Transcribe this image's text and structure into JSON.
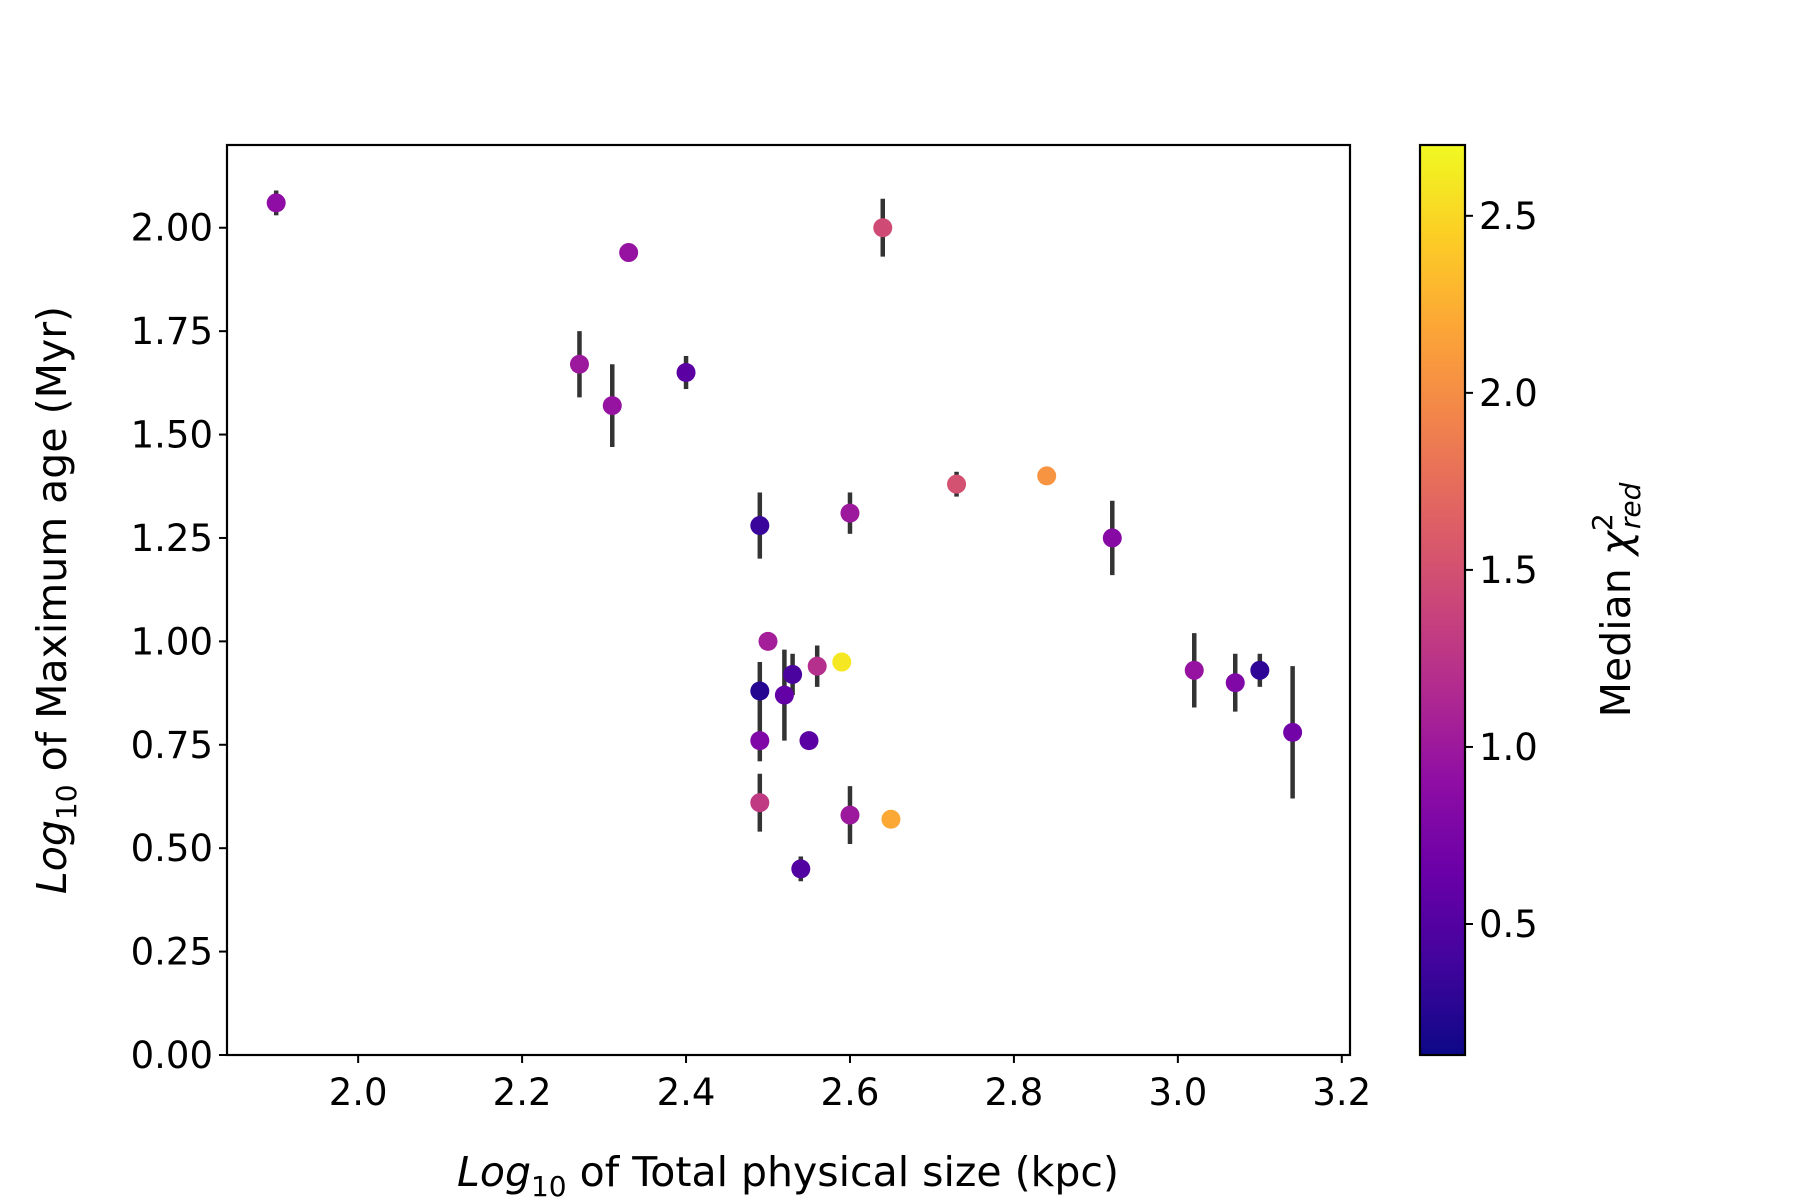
{
  "chart_data": {
    "type": "scatter",
    "xlabel": {
      "prefix": "Log",
      "sub": "10",
      "rest": " of Total physical size (kpc)"
    },
    "ylabel": {
      "prefix": "Log",
      "sub": "10",
      "rest": " of Maximum age (Myr)"
    },
    "xlim": [
      1.84,
      3.21
    ],
    "ylim": [
      0.0,
      2.2
    ],
    "xticks": [
      "2.0",
      "2.2",
      "2.4",
      "2.6",
      "2.8",
      "3.0",
      "3.2"
    ],
    "yticks": [
      "0.00",
      "0.25",
      "0.50",
      "0.75",
      "1.00",
      "1.25",
      "1.50",
      "1.75",
      "2.00"
    ],
    "colorbar": {
      "label": {
        "prefix": "Median ",
        "symbol": "χ",
        "sup": "2",
        "sub": "red"
      },
      "range": [
        0.13,
        2.7
      ],
      "ticks": [
        "0.5",
        "1.0",
        "1.5",
        "2.0",
        "2.5"
      ],
      "colormap": "plasma"
    },
    "points": [
      {
        "x": 1.9,
        "y": 2.06,
        "err": 0.03,
        "c": 0.9
      },
      {
        "x": 2.33,
        "y": 1.94,
        "err": 0.0,
        "c": 0.95
      },
      {
        "x": 2.27,
        "y": 1.67,
        "err": 0.08,
        "c": 1.0
      },
      {
        "x": 2.31,
        "y": 1.57,
        "err": 0.1,
        "c": 0.95
      },
      {
        "x": 2.4,
        "y": 1.65,
        "err": 0.04,
        "c": 0.55
      },
      {
        "x": 2.64,
        "y": 2.0,
        "err": 0.07,
        "c": 1.45
      },
      {
        "x": 2.49,
        "y": 1.28,
        "err": 0.08,
        "c": 0.35
      },
      {
        "x": 2.6,
        "y": 1.31,
        "err": 0.05,
        "c": 1.0
      },
      {
        "x": 2.73,
        "y": 1.38,
        "err": 0.03,
        "c": 1.5
      },
      {
        "x": 2.84,
        "y": 1.4,
        "err": 0.0,
        "c": 2.05
      },
      {
        "x": 2.92,
        "y": 1.25,
        "err": 0.09,
        "c": 0.85
      },
      {
        "x": 2.5,
        "y": 1.0,
        "err": 0.0,
        "c": 1.05
      },
      {
        "x": 2.59,
        "y": 0.95,
        "err": 0.0,
        "c": 2.6
      },
      {
        "x": 2.56,
        "y": 0.94,
        "err": 0.05,
        "c": 1.2
      },
      {
        "x": 2.49,
        "y": 0.88,
        "err": 0.07,
        "c": 0.25
      },
      {
        "x": 2.53,
        "y": 0.92,
        "err": 0.05,
        "c": 0.45
      },
      {
        "x": 2.52,
        "y": 0.87,
        "err": 0.11,
        "c": 0.6
      },
      {
        "x": 2.49,
        "y": 0.76,
        "err": 0.05,
        "c": 0.8
      },
      {
        "x": 2.55,
        "y": 0.76,
        "err": 0.02,
        "c": 0.55
      },
      {
        "x": 2.49,
        "y": 0.61,
        "err": 0.07,
        "c": 1.3
      },
      {
        "x": 2.6,
        "y": 0.58,
        "err": 0.07,
        "c": 1.0
      },
      {
        "x": 2.65,
        "y": 0.57,
        "err": 0.02,
        "c": 2.2
      },
      {
        "x": 2.54,
        "y": 0.45,
        "err": 0.03,
        "c": 0.5
      },
      {
        "x": 3.02,
        "y": 0.93,
        "err": 0.09,
        "c": 0.95
      },
      {
        "x": 3.07,
        "y": 0.9,
        "err": 0.07,
        "c": 0.8
      },
      {
        "x": 3.1,
        "y": 0.93,
        "err": 0.04,
        "c": 0.3
      },
      {
        "x": 3.14,
        "y": 0.78,
        "err": 0.16,
        "c": 0.7
      }
    ]
  }
}
